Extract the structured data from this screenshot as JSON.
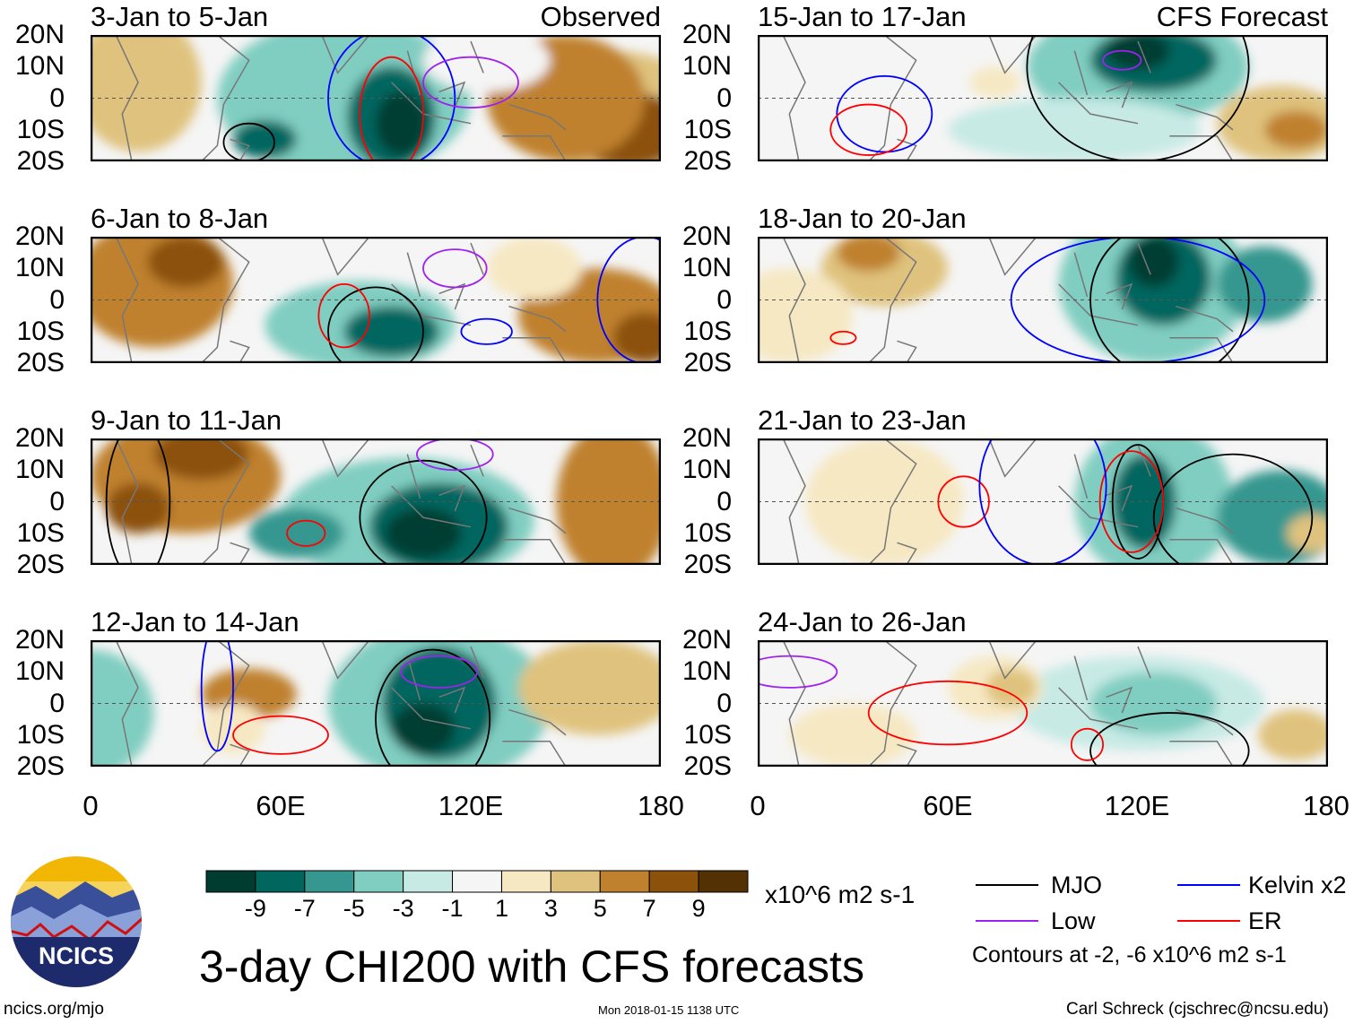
{
  "panels": [
    {
      "title": "3-Jan to 5-Jan",
      "right_label": "Observed"
    },
    {
      "title": "6-Jan to 8-Jan",
      "right_label": ""
    },
    {
      "title": "9-Jan to 11-Jan",
      "right_label": ""
    },
    {
      "title": "12-Jan to 14-Jan",
      "right_label": ""
    },
    {
      "title": "15-Jan to 17-Jan",
      "right_label": "CFS Forecast"
    },
    {
      "title": "18-Jan to 20-Jan",
      "right_label": ""
    },
    {
      "title": "21-Jan to 23-Jan",
      "right_label": ""
    },
    {
      "title": "24-Jan to 26-Jan",
      "right_label": ""
    }
  ],
  "lat_ticks": [
    "20N",
    "10N",
    "0",
    "10S",
    "20S"
  ],
  "lon_ticks": [
    "0",
    "60E",
    "120E",
    "180"
  ],
  "chart_data": {
    "type": "heatmap",
    "title": "3-day CHI200 with CFS forecasts",
    "variable": "CHI200",
    "units": "x10^6 m2 s-1",
    "xlim": [
      0,
      180
    ],
    "ylim": [
      -20,
      20
    ],
    "colorbar": {
      "levels": [
        "-9",
        "-7",
        "-5",
        "-3",
        "-1",
        "1",
        "3",
        "5",
        "7",
        "9"
      ],
      "colors": [
        "#003c30",
        "#01665e",
        "#35978f",
        "#80cdc1",
        "#c7eae5",
        "#f5f5f5",
        "#f6e8c3",
        "#dfc27d",
        "#bf812d",
        "#8c510a",
        "#543005"
      ]
    },
    "contour_legend": [
      {
        "name": "MJO",
        "color": "#000000"
      },
      {
        "name": "Kelvin x2",
        "color": "#0000ff"
      },
      {
        "name": "Low",
        "color": "#a020f0"
      },
      {
        "name": "ER",
        "color": "#ff0000"
      }
    ],
    "contour_note": "Contours at -2, -6 x10^6 m2 s-1"
  },
  "logo": {
    "text": "NCICS"
  },
  "footer": {
    "url": "ncics.org/mjo",
    "timestamp": "Mon 2018-01-15 1138 UTC",
    "author": "Carl Schreck (cjschrec@ncsu.edu)"
  }
}
